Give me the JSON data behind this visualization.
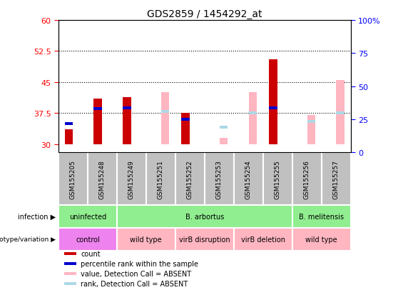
{
  "title": "GDS2859 / 1454292_at",
  "samples": [
    "GSM155205",
    "GSM155248",
    "GSM155249",
    "GSM155251",
    "GSM155252",
    "GSM155253",
    "GSM155254",
    "GSM155255",
    "GSM155256",
    "GSM155257"
  ],
  "ylim_left": [
    28,
    60
  ],
  "ylim_right": [
    0,
    100
  ],
  "yticks_left": [
    30,
    37.5,
    45,
    52.5,
    60
  ],
  "yticks_right": [
    0,
    25,
    50,
    75,
    100
  ],
  "ytick_labels_left": [
    "30",
    "37.5",
    "45",
    "52.5",
    "60"
  ],
  "ytick_labels_right": [
    "0",
    "25",
    "50",
    "75",
    "100%"
  ],
  "hlines": [
    37.5,
    45,
    52.5
  ],
  "bar_bottom": 30,
  "count_values": [
    33.5,
    41.0,
    41.3,
    null,
    37.5,
    null,
    null,
    50.5,
    null,
    null
  ],
  "rank_values": [
    35.0,
    38.5,
    38.7,
    null,
    36.0,
    null,
    null,
    38.8,
    null,
    null
  ],
  "value_absent": [
    null,
    null,
    null,
    42.5,
    null,
    31.5,
    42.5,
    null,
    37.0,
    45.5
  ],
  "rank_absent": [
    null,
    null,
    null,
    37.8,
    null,
    34.0,
    37.5,
    null,
    35.5,
    37.5
  ],
  "color_count": "#CC0000",
  "color_rank": "#0000CC",
  "color_value_absent": "#FFB6C1",
  "color_rank_absent": "#ADD8E6",
  "color_sample_box": "#C0C0C0",
  "color_infection": "#90EE90",
  "color_control": "#EE82EE",
  "color_wildtype": "#FFB6C1",
  "inf_groups": [
    {
      "label": "uninfected",
      "start": 0,
      "end": 1
    },
    {
      "label": "B. arbortus",
      "start": 2,
      "end": 7
    },
    {
      "label": "B. melitensis",
      "start": 8,
      "end": 9
    }
  ],
  "gen_groups": [
    {
      "label": "control",
      "start": 0,
      "end": 1,
      "is_control": true
    },
    {
      "label": "wild type",
      "start": 2,
      "end": 3,
      "is_control": false
    },
    {
      "label": "virB disruption",
      "start": 4,
      "end": 5,
      "is_control": false
    },
    {
      "label": "virB deletion",
      "start": 6,
      "end": 7,
      "is_control": false
    },
    {
      "label": "wild type",
      "start": 8,
      "end": 9,
      "is_control": false
    }
  ],
  "legend_items": [
    {
      "color": "#CC0000",
      "label": "count"
    },
    {
      "color": "#0000CC",
      "label": "percentile rank within the sample"
    },
    {
      "color": "#FFB6C1",
      "label": "value, Detection Call = ABSENT"
    },
    {
      "color": "#ADD8E6",
      "label": "rank, Detection Call = ABSENT"
    }
  ]
}
